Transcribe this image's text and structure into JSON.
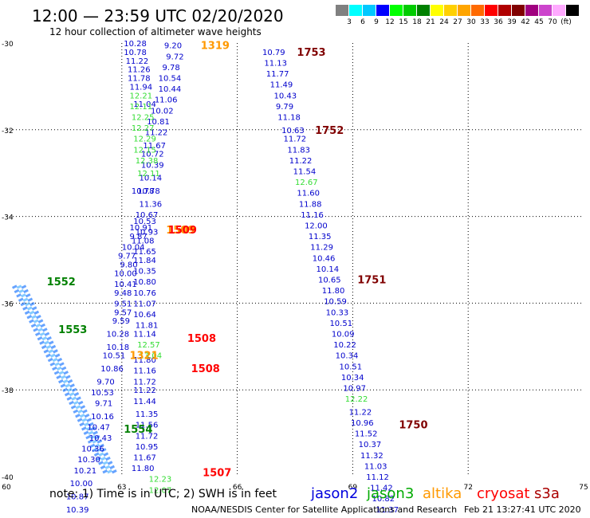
{
  "header": {
    "title": "12:00 — 23:59 UTC 02/20/2020",
    "subtitle": "12 hour collection of altimeter wave heights"
  },
  "color_scale": {
    "swatches": [
      "#808080",
      "#00ffff",
      "#00c8ff",
      "#0000ff",
      "#00ff00",
      "#00cc00",
      "#008000",
      "#ffff00",
      "#ffd000",
      "#ffa500",
      "#ff6a00",
      "#ff0000",
      "#b00000",
      "#800000",
      "#a0007f",
      "#cc44cc",
      "#ffaaff",
      "#000000"
    ],
    "labels": [
      "3",
      "6",
      "9",
      "12",
      "15",
      "18",
      "21",
      "24",
      "27",
      "30",
      "33",
      "36",
      "39",
      "42",
      "45",
      "70",
      "(ft)"
    ]
  },
  "chart_data": {
    "type": "scatter",
    "title": "12:00 — 23:59 UTC 02/20/2020",
    "subtitle": "12 hour collection of altimeter wave heights",
    "xlim": [
      60,
      75
    ],
    "ylim": [
      -40,
      -30
    ],
    "x_ticks": [
      "60",
      "63",
      "66",
      "69",
      "72",
      "75"
    ],
    "y_ticks": [
      "-30",
      "-32",
      "-34",
      "-36",
      "-38",
      "-40"
    ],
    "grid": "dotted",
    "units": "ft",
    "track_times": [
      {
        "label": "1319",
        "x": 65.05,
        "y": -30.05,
        "color": "#ff9900"
      },
      {
        "label": "1753",
        "x": 67.55,
        "y": -30.2,
        "color": "#800000"
      },
      {
        "label": "1752",
        "x": 68.02,
        "y": -32.0,
        "color": "#800000"
      },
      {
        "label": "1509",
        "x": 64.15,
        "y": -34.3,
        "color": "#ff9900"
      },
      {
        "label": "1509",
        "x": 64.2,
        "y": -34.3,
        "color": "#ff0000"
      },
      {
        "label": "1751",
        "x": 69.12,
        "y": -35.45,
        "color": "#800000"
      },
      {
        "label": "1552",
        "x": 61.05,
        "y": -35.5,
        "color": "#008000"
      },
      {
        "label": "1553",
        "x": 61.35,
        "y": -36.6,
        "color": "#008000"
      },
      {
        "label": "1508",
        "x": 64.7,
        "y": -36.8,
        "color": "#ff0000"
      },
      {
        "label": "1508",
        "x": 64.8,
        "y": -37.5,
        "color": "#ff0000"
      },
      {
        "label": "1321",
        "x": 63.2,
        "y": -37.2,
        "color": "#ff9900"
      },
      {
        "label": "1750",
        "x": 70.2,
        "y": -38.8,
        "color": "#800000"
      },
      {
        "label": "1554",
        "x": 63.05,
        "y": -38.9,
        "color": "#008000"
      },
      {
        "label": "1507",
        "x": 65.1,
        "y": -39.9,
        "color": "#ff0000"
      }
    ],
    "series": [
      {
        "name": "jason2",
        "color": "#0000cc",
        "points": [
          {
            "x": 63.05,
            "y": -30.0,
            "v": "10.28"
          },
          {
            "x": 63.05,
            "y": -30.2,
            "v": "10.78"
          },
          {
            "x": 63.1,
            "y": -30.4,
            "v": "11.22"
          },
          {
            "x": 63.15,
            "y": -30.6,
            "v": "11.26"
          },
          {
            "x": 63.15,
            "y": -30.8,
            "v": "11.78"
          },
          {
            "x": 63.2,
            "y": -31.0,
            "v": "11.94"
          },
          {
            "x": 63.3,
            "y": -31.4,
            "v": "11.04"
          },
          {
            "x": 63.25,
            "y": -33.4,
            "v": "10.78"
          },
          {
            "x": 63.2,
            "y": -34.25,
            "v": "10.91"
          },
          {
            "x": 63.2,
            "y": -34.45,
            "v": "9.87"
          },
          {
            "x": 63.0,
            "y": -34.7,
            "v": "10.04"
          },
          {
            "x": 62.9,
            "y": -34.9,
            "v": "9.77"
          },
          {
            "x": 62.95,
            "y": -35.1,
            "v": "9.80"
          },
          {
            "x": 62.8,
            "y": -35.3,
            "v": "10.00"
          },
          {
            "x": 62.8,
            "y": -35.55,
            "v": "10.41"
          },
          {
            "x": 62.8,
            "y": -35.75,
            "v": "9.48"
          },
          {
            "x": 62.8,
            "y": -36.0,
            "v": "9.51"
          },
          {
            "x": 62.8,
            "y": -36.2,
            "v": "9.57"
          },
          {
            "x": 62.75,
            "y": -36.4,
            "v": "9.59"
          },
          {
            "x": 62.6,
            "y": -36.7,
            "v": "10.28"
          },
          {
            "x": 62.6,
            "y": -37.0,
            "v": "10.18"
          },
          {
            "x": 62.5,
            "y": -37.2,
            "v": "10.51"
          },
          {
            "x": 62.45,
            "y": -37.5,
            "v": "10.86"
          },
          {
            "x": 62.35,
            "y": -37.8,
            "v": "9.70"
          },
          {
            "x": 62.2,
            "y": -38.05,
            "v": "10.53"
          },
          {
            "x": 62.3,
            "y": -38.3,
            "v": "9.71"
          },
          {
            "x": 62.2,
            "y": -38.6,
            "v": "10.16"
          },
          {
            "x": 62.1,
            "y": -38.85,
            "v": "10.47"
          },
          {
            "x": 62.15,
            "y": -39.1,
            "v": "10.43"
          },
          {
            "x": 61.95,
            "y": -39.35,
            "v": "10.36"
          },
          {
            "x": 61.85,
            "y": -39.6,
            "v": "10.30"
          },
          {
            "x": 61.75,
            "y": -39.85,
            "v": "10.21"
          },
          {
            "x": 61.65,
            "y": -40.15,
            "v": "10.00"
          },
          {
            "x": 61.55,
            "y": -40.45,
            "v": "10.87"
          },
          {
            "x": 61.55,
            "y": -40.75,
            "v": "10.39"
          },
          {
            "x": 64.1,
            "y": -30.05,
            "v": "9.20"
          },
          {
            "x": 64.15,
            "y": -30.3,
            "v": "9.72"
          },
          {
            "x": 64.05,
            "y": -30.55,
            "v": "9.78"
          },
          {
            "x": 63.95,
            "y": -30.8,
            "v": "10.54"
          },
          {
            "x": 63.95,
            "y": -31.05,
            "v": "10.44"
          },
          {
            "x": 63.85,
            "y": -31.3,
            "v": "11.06"
          },
          {
            "x": 63.75,
            "y": -31.55,
            "v": "10.02"
          },
          {
            "x": 63.65,
            "y": -31.8,
            "v": "10.81"
          },
          {
            "x": 63.6,
            "y": -32.05,
            "v": "11.22"
          },
          {
            "x": 63.55,
            "y": -32.35,
            "v": "11.67"
          },
          {
            "x": 63.5,
            "y": -32.55,
            "v": "10.72"
          },
          {
            "x": 63.5,
            "y": -32.8,
            "v": "10.39"
          },
          {
            "x": 63.45,
            "y": -33.1,
            "v": "10.14"
          },
          {
            "x": 63.4,
            "y": -33.4,
            "v": "10.78"
          },
          {
            "x": 63.45,
            "y": -33.7,
            "v": "11.36"
          },
          {
            "x": 63.35,
            "y": -33.95,
            "v": "10.67"
          },
          {
            "x": 63.3,
            "y": -34.1,
            "v": "10.53"
          },
          {
            "x": 63.35,
            "y": -34.35,
            "v": "10.93"
          },
          {
            "x": 63.25,
            "y": -34.55,
            "v": "11.08"
          },
          {
            "x": 63.3,
            "y": -34.8,
            "v": "11.65"
          },
          {
            "x": 63.3,
            "y": -35.0,
            "v": "11.84"
          },
          {
            "x": 63.3,
            "y": -35.25,
            "v": "10.35"
          },
          {
            "x": 63.3,
            "y": -35.5,
            "v": "10.80"
          },
          {
            "x": 63.3,
            "y": -35.75,
            "v": "10.76"
          },
          {
            "x": 63.3,
            "y": -36.0,
            "v": "11.07"
          },
          {
            "x": 63.3,
            "y": -36.25,
            "v": "10.64"
          },
          {
            "x": 63.35,
            "y": -36.5,
            "v": "11.81"
          },
          {
            "x": 63.3,
            "y": -36.7,
            "v": "11.14"
          },
          {
            "x": 63.3,
            "y": -37.3,
            "v": "11.80"
          },
          {
            "x": 63.3,
            "y": -37.55,
            "v": "11.16"
          },
          {
            "x": 63.3,
            "y": -37.8,
            "v": "11.72"
          },
          {
            "x": 63.3,
            "y": -38.0,
            "v": "11.22"
          },
          {
            "x": 63.3,
            "y": -38.25,
            "v": "11.44"
          },
          {
            "x": 63.35,
            "y": -38.55,
            "v": "11.35"
          },
          {
            "x": 63.35,
            "y": -38.8,
            "v": "11.56"
          },
          {
            "x": 63.35,
            "y": -39.05,
            "v": "11.72"
          },
          {
            "x": 63.35,
            "y": -39.3,
            "v": "10.95"
          },
          {
            "x": 63.3,
            "y": -39.55,
            "v": "11.67"
          },
          {
            "x": 63.25,
            "y": -39.8,
            "v": "11.80"
          },
          {
            "x": 66.65,
            "y": -30.2,
            "v": "10.79"
          },
          {
            "x": 66.7,
            "y": -30.45,
            "v": "11.13"
          },
          {
            "x": 66.75,
            "y": -30.7,
            "v": "11.77"
          },
          {
            "x": 66.85,
            "y": -30.95,
            "v": "11.49"
          },
          {
            "x": 66.95,
            "y": -31.2,
            "v": "10.43"
          },
          {
            "x": 67.0,
            "y": -31.45,
            "v": "9.79"
          },
          {
            "x": 67.05,
            "y": -31.7,
            "v": "11.18"
          },
          {
            "x": 67.15,
            "y": -32.0,
            "v": "10.63"
          },
          {
            "x": 67.2,
            "y": -32.2,
            "v": "11.72"
          },
          {
            "x": 67.3,
            "y": -32.45,
            "v": "11.83"
          },
          {
            "x": 67.35,
            "y": -32.7,
            "v": "11.22"
          },
          {
            "x": 67.45,
            "y": -32.95,
            "v": "11.54"
          },
          {
            "x": 67.55,
            "y": -33.45,
            "v": "11.60"
          },
          {
            "x": 67.6,
            "y": -33.7,
            "v": "11.88"
          },
          {
            "x": 67.65,
            "y": -33.95,
            "v": "11.16"
          },
          {
            "x": 67.75,
            "y": -34.2,
            "v": "12.00"
          },
          {
            "x": 67.85,
            "y": -34.45,
            "v": "11.35"
          },
          {
            "x": 67.9,
            "y": -34.7,
            "v": "11.29"
          },
          {
            "x": 67.95,
            "y": -34.95,
            "v": "10.46"
          },
          {
            "x": 68.05,
            "y": -35.2,
            "v": "10.14"
          },
          {
            "x": 68.1,
            "y": -35.45,
            "v": "10.65"
          },
          {
            "x": 68.2,
            "y": -35.7,
            "v": "11.80"
          },
          {
            "x": 68.25,
            "y": -35.95,
            "v": "10.59"
          },
          {
            "x": 68.3,
            "y": -36.2,
            "v": "10.33"
          },
          {
            "x": 68.4,
            "y": -36.45,
            "v": "10.51"
          },
          {
            "x": 68.45,
            "y": -36.7,
            "v": "10.09"
          },
          {
            "x": 68.5,
            "y": -36.95,
            "v": "10.22"
          },
          {
            "x": 68.55,
            "y": -37.2,
            "v": "10.34"
          },
          {
            "x": 68.65,
            "y": -37.45,
            "v": "10.51"
          },
          {
            "x": 68.7,
            "y": -37.7,
            "v": "10.34"
          },
          {
            "x": 68.75,
            "y": -37.95,
            "v": "10.97"
          },
          {
            "x": 68.9,
            "y": -38.5,
            "v": "11.22"
          },
          {
            "x": 68.95,
            "y": -38.75,
            "v": "10.96"
          },
          {
            "x": 69.05,
            "y": -39.0,
            "v": "11.52"
          },
          {
            "x": 69.15,
            "y": -39.25,
            "v": "10.37"
          },
          {
            "x": 69.2,
            "y": -39.5,
            "v": "11.32"
          },
          {
            "x": 69.3,
            "y": -39.75,
            "v": "11.03"
          },
          {
            "x": 69.35,
            "y": -40.0,
            "v": "11.12"
          },
          {
            "x": 69.45,
            "y": -40.25,
            "v": "11.42"
          },
          {
            "x": 69.5,
            "y": -40.5,
            "v": "10.82"
          },
          {
            "x": 69.6,
            "y": -40.75,
            "v": "11.37"
          }
        ]
      },
      {
        "name": "jason3",
        "color": "#33dd33",
        "points": [
          {
            "x": 63.2,
            "y": -31.2,
            "v": "12.21"
          },
          {
            "x": 63.2,
            "y": -31.45,
            "v": "12.11"
          },
          {
            "x": 63.25,
            "y": -31.7,
            "v": "12.25"
          },
          {
            "x": 63.25,
            "y": -31.95,
            "v": "12.27"
          },
          {
            "x": 63.3,
            "y": -32.2,
            "v": "12.29"
          },
          {
            "x": 63.3,
            "y": -32.45,
            "v": "12.15"
          },
          {
            "x": 63.35,
            "y": -32.7,
            "v": "12.38"
          },
          {
            "x": 63.4,
            "y": -33.0,
            "v": "12.11"
          },
          {
            "x": 63.4,
            "y": -36.95,
            "v": "12.57"
          },
          {
            "x": 63.45,
            "y": -37.2,
            "v": "13.04"
          },
          {
            "x": 63.7,
            "y": -40.05,
            "v": "12.23"
          },
          {
            "x": 63.7,
            "y": -40.3,
            "v": "12.07"
          },
          {
            "x": 67.5,
            "y": -33.2,
            "v": "12.67"
          },
          {
            "x": 68.8,
            "y": -38.2,
            "v": "12.22"
          }
        ]
      },
      {
        "name": "altika",
        "color": "#ff9900",
        "points": []
      },
      {
        "name": "cryosat",
        "color": "#ff0000",
        "points": []
      },
      {
        "name": "s3a",
        "color": "#aa0000",
        "points": []
      }
    ]
  },
  "note": "note:  1) Time is in UTC; 2) SWH is in feet",
  "satellites": [
    {
      "label": "jason2",
      "color": "#0000dd"
    },
    {
      "label": "jason3",
      "color": "#00aa00"
    },
    {
      "label": "altika",
      "color": "#ff9900"
    },
    {
      "label": "cryosat",
      "color": "#ff0000"
    },
    {
      "label": "s3a",
      "color": "#aa0000"
    }
  ],
  "footer": {
    "left": "NOAA/NESDIS Center for Satellite Applications and Research",
    "right": "Feb 21 13:27:41 UTC 2020"
  }
}
